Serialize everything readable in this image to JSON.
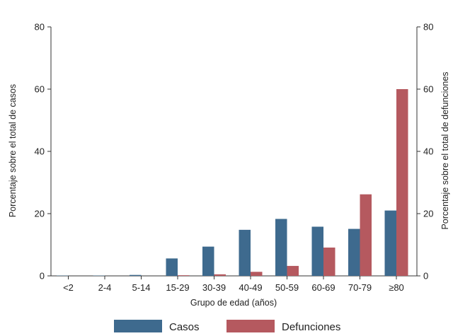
{
  "chart_data": {
    "type": "bar",
    "categories": [
      "<2",
      "2-4",
      "5-14",
      "15-29",
      "30-39",
      "40-49",
      "50-59",
      "60-69",
      "70-79",
      "≥80"
    ],
    "series": [
      {
        "name": "Casos",
        "axis": "left",
        "color": "#3e6a8e",
        "values": [
          0.1,
          0.1,
          0.3,
          5.6,
          9.4,
          14.8,
          18.3,
          15.8,
          15.1,
          21.0
        ]
      },
      {
        "name": "Defunciones",
        "axis": "right",
        "color": "#b5595f",
        "values": [
          0.0,
          0.0,
          0.0,
          0.2,
          0.5,
          1.3,
          3.2,
          9.1,
          26.2,
          60.0
        ]
      }
    ],
    "xlabel": "Grupo de edad (años)",
    "ylabel_left": "Porcentaje sobre el total de casos",
    "ylabel_right": "Porcentaje sobre el total de defunciones",
    "ylim": [
      0,
      80
    ],
    "yticks": [
      0,
      20,
      40,
      60,
      80
    ],
    "legend_position": "bottom",
    "grid": false
  }
}
